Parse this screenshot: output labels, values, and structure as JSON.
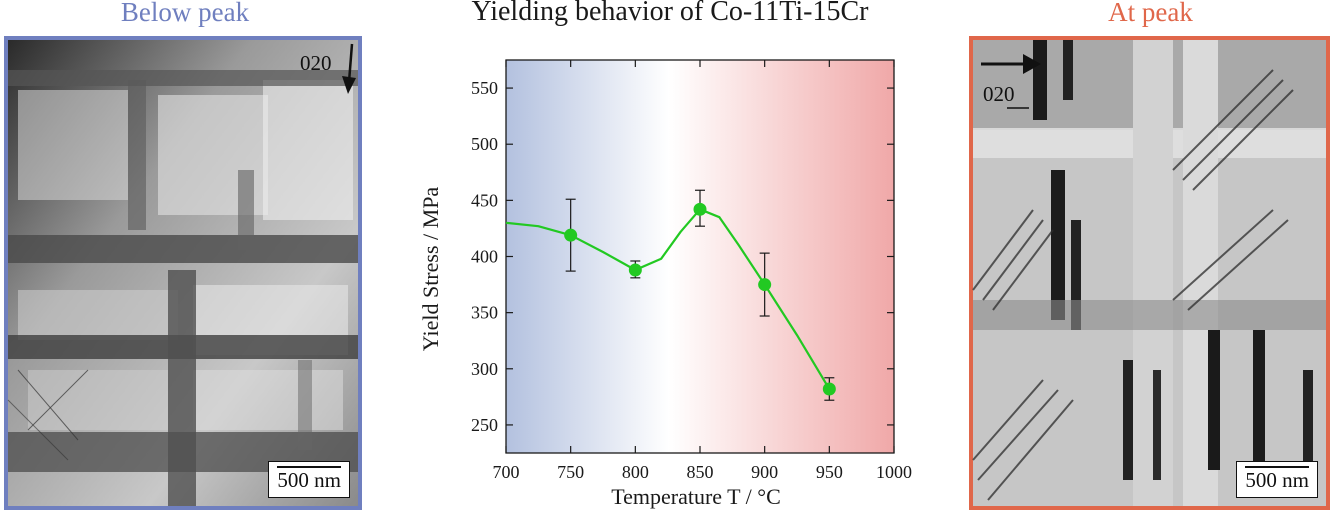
{
  "panels": {
    "left": {
      "title": "Below peak",
      "direction_label": "020",
      "scale_bar": "500 nm",
      "frame_color": "#6f7fbf"
    },
    "right": {
      "title": "At peak",
      "direction_label": "020",
      "scale_bar": "500 nm",
      "frame_color": "#e0674a"
    }
  },
  "chart_data": {
    "type": "line",
    "title": "Yielding behavior of Co-11Ti-15Cr",
    "xlabel": "Temperature T / °C",
    "ylabel": "Yield Stress / MPa",
    "xlim": [
      700,
      1000
    ],
    "ylim": [
      225,
      575
    ],
    "xticks": [
      700,
      750,
      800,
      850,
      900,
      950,
      1000
    ],
    "yticks": [
      250,
      300,
      350,
      400,
      450,
      500,
      550
    ],
    "grid": false,
    "series": [
      {
        "color": "#22c922",
        "x": [
          750,
          800,
          850,
          900,
          950
        ],
        "y": [
          419,
          388,
          442,
          375,
          282
        ],
        "err_low": [
          387,
          381,
          427,
          347,
          272
        ],
        "err_high": [
          451,
          396,
          459,
          403,
          292
        ],
        "fit_curve": [
          [
            700,
            430
          ],
          [
            725,
            427
          ],
          [
            750,
            419
          ],
          [
            775,
            404
          ],
          [
            800,
            388
          ],
          [
            820,
            398
          ],
          [
            835,
            422
          ],
          [
            850,
            442
          ],
          [
            865,
            435
          ],
          [
            880,
            410
          ],
          [
            900,
            375
          ],
          [
            925,
            330
          ],
          [
            950,
            282
          ]
        ]
      }
    ],
    "background_gradient": [
      "#b3c1df",
      "#ffffff",
      "#f0a8a8"
    ]
  }
}
